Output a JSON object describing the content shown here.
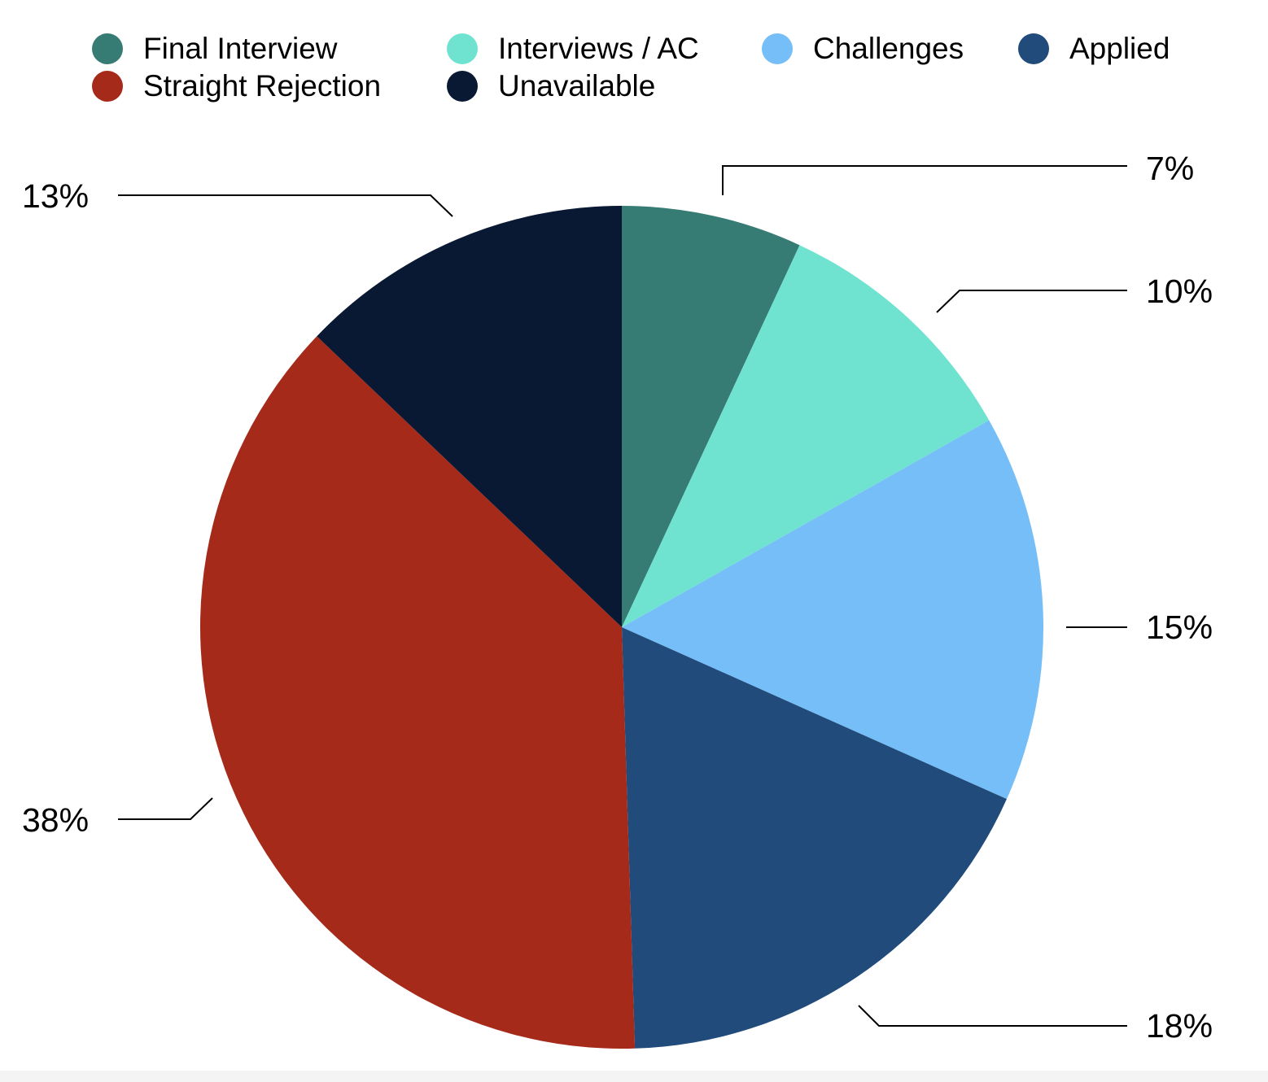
{
  "chart_data": {
    "type": "pie",
    "title": "",
    "legend_position": "top",
    "start_angle_deg": 0,
    "direction": "clockwise",
    "slices": [
      {
        "name": "Final Interview",
        "value": 7,
        "label": "7%",
        "color": "#377b75"
      },
      {
        "name": "Interviews / AC",
        "value": 10,
        "label": "10%",
        "color": "#6fe3d0"
      },
      {
        "name": "Challenges",
        "value": 15,
        "label": "15%",
        "color": "#75bef8"
      },
      {
        "name": "Applied",
        "value": 18,
        "label": "18%",
        "color": "#204b7a"
      },
      {
        "name": "Straight Rejection",
        "value": 38,
        "label": "38%",
        "color": "#a52a19"
      },
      {
        "name": "Unavailable",
        "value": 13,
        "label": "13%",
        "color": "#091934"
      }
    ]
  }
}
